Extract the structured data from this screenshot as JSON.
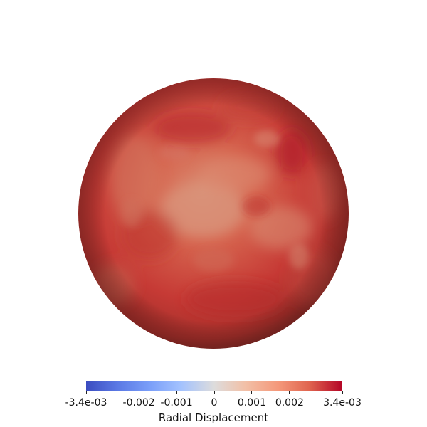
{
  "colorbar": {
    "title": "Radial Displacement",
    "min": -0.0034,
    "max": 0.0034,
    "colormap": "cool-to-warm",
    "colors": {
      "low": "#3b4cc0",
      "mid": "#dddddd",
      "high": "#b40426"
    },
    "ticks": [
      {
        "value": -0.0034,
        "label": "-3.4e-03"
      },
      {
        "value": -0.002,
        "label": "-0.002"
      },
      {
        "value": -0.001,
        "label": "-0.001"
      },
      {
        "value": 0,
        "label": "0"
      },
      {
        "value": 0.001,
        "label": "0.001"
      },
      {
        "value": 0.002,
        "label": "0.002"
      },
      {
        "value": 0.0034,
        "label": "3.4e-03"
      }
    ]
  },
  "sphere": {
    "colors": {
      "base": "#c9443a",
      "light": "#d98a70",
      "dark": "#b51f28",
      "shadow": "#7a2a24"
    }
  }
}
